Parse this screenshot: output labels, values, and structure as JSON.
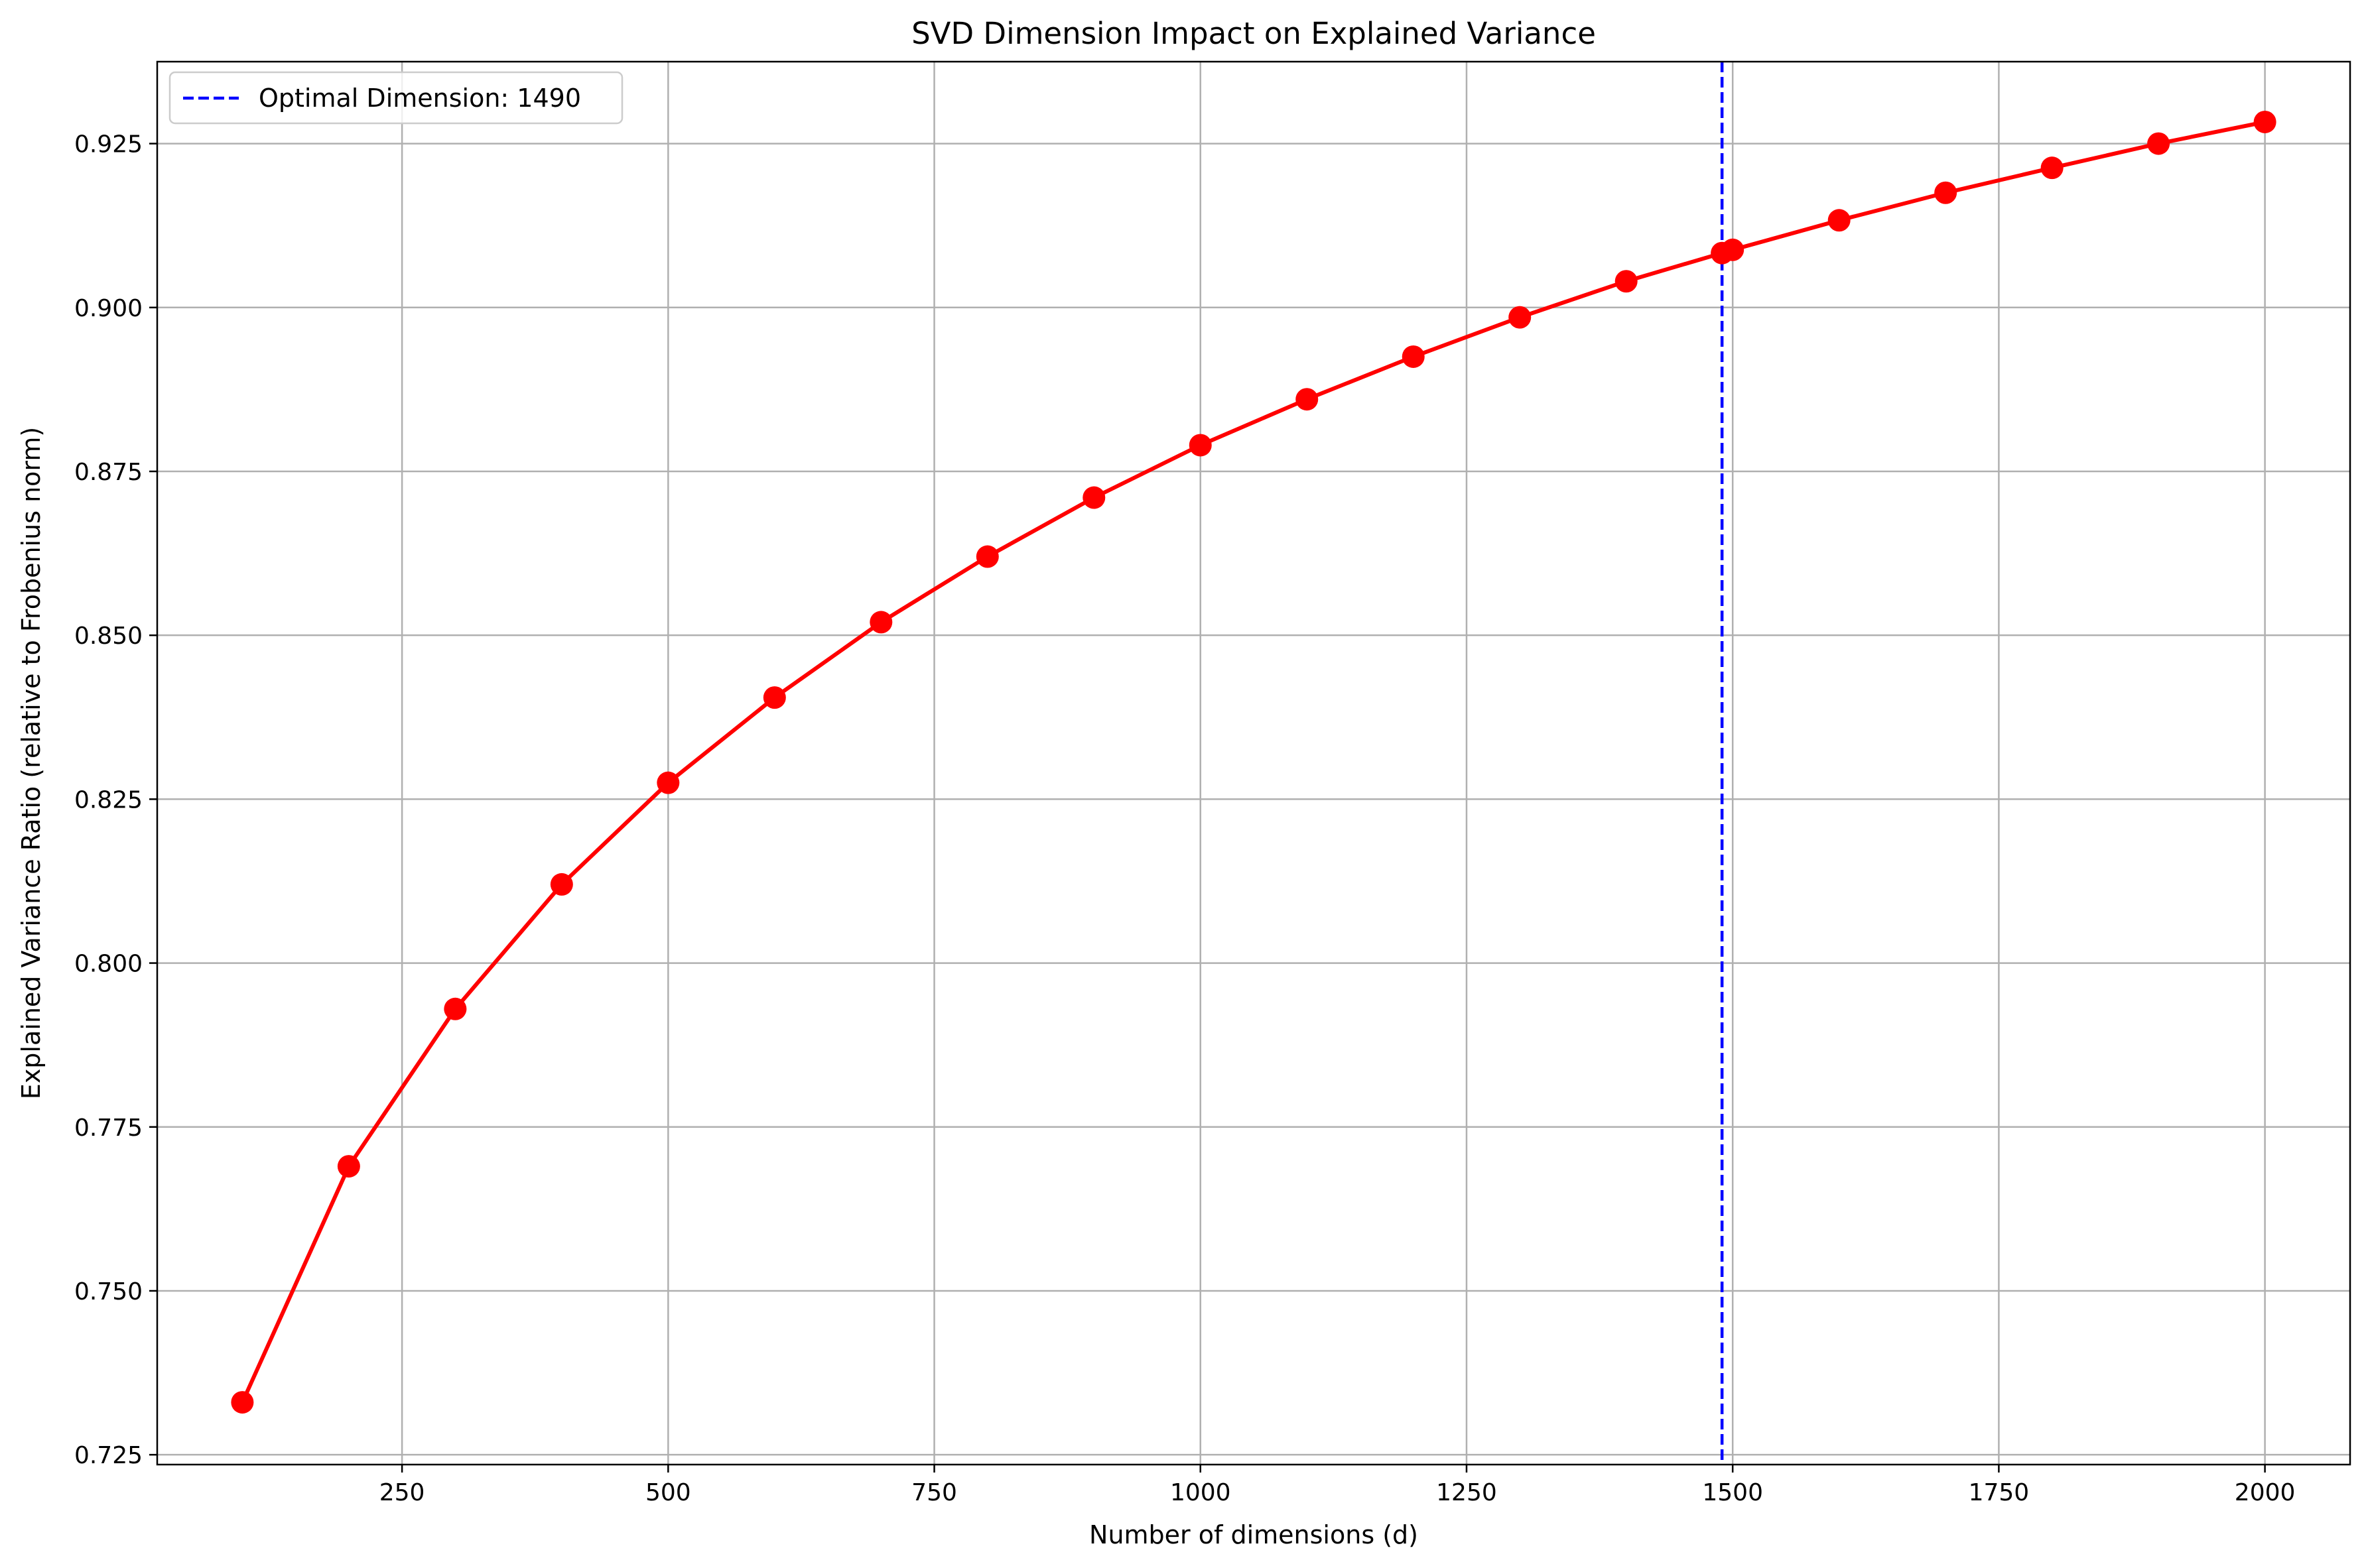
{
  "chart_data": {
    "type": "line",
    "title": "SVD Dimension Impact on Explained Variance",
    "xlabel": "Number of dimensions (d)",
    "ylabel": "Explained Variance Ratio (relative to Frobenius norm)",
    "xlim": [
      20,
      2080
    ],
    "ylim": [
      0.7235,
      0.9375
    ],
    "xticks": [
      250,
      500,
      750,
      1000,
      1250,
      1500,
      1750,
      2000
    ],
    "yticks": [
      0.725,
      0.75,
      0.775,
      0.8,
      0.825,
      0.85,
      0.875,
      0.9,
      0.925
    ],
    "xtick_labels": [
      "250",
      "500",
      "750",
      "1000",
      "1250",
      "1500",
      "1750",
      "2000"
    ],
    "ytick_labels": [
      "0.725",
      "0.750",
      "0.775",
      "0.800",
      "0.825",
      "0.850",
      "0.875",
      "0.900",
      "0.925"
    ],
    "grid": true,
    "legend_position": "top-left",
    "series": [
      {
        "color": "#ff0000",
        "marker": "circle",
        "x": [
          100,
          200,
          300,
          400,
          500,
          600,
          700,
          800,
          900,
          1000,
          1100,
          1200,
          1300,
          1400,
          1490,
          1500,
          1600,
          1700,
          1800,
          1900,
          2000
        ],
        "y": [
          0.733,
          0.769,
          0.793,
          0.812,
          0.8275,
          0.8405,
          0.852,
          0.862,
          0.871,
          0.879,
          0.886,
          0.8925,
          0.8985,
          0.904,
          0.9083,
          0.9088,
          0.9133,
          0.9175,
          0.9213,
          0.925,
          0.9283
        ]
      }
    ],
    "annotations": [
      {
        "type": "vline",
        "x": 1490,
        "style": "dashed",
        "color": "#0000ff",
        "label": "Optimal Dimension: 1490"
      }
    ]
  }
}
